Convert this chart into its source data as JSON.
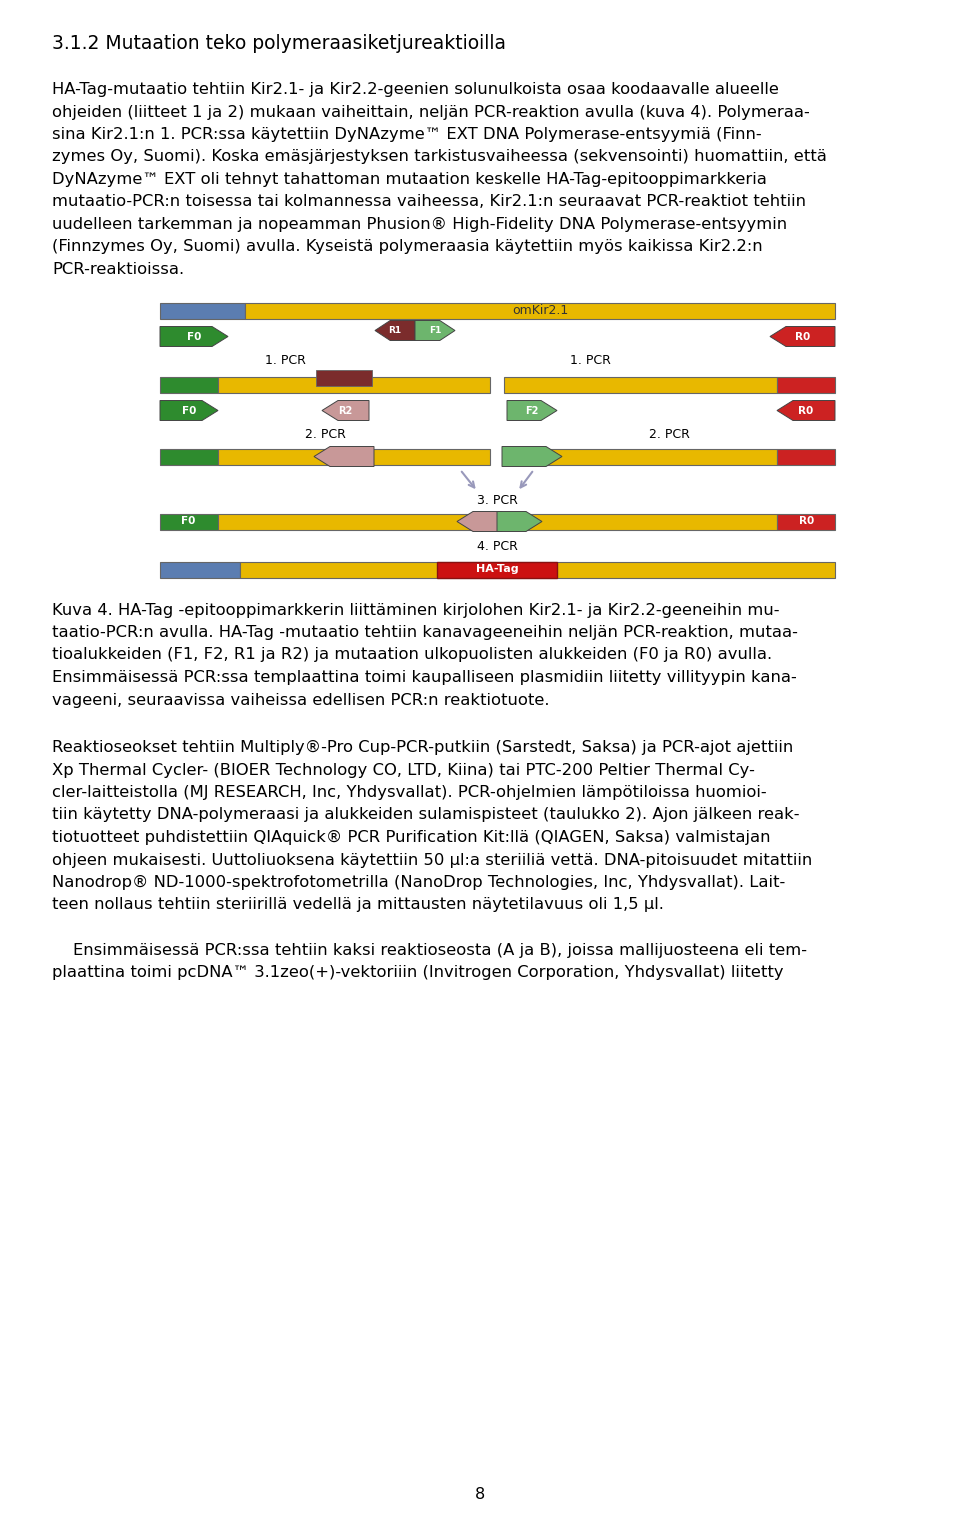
{
  "bg_color": "#ffffff",
  "heading": "3.1.2 Mutaation teko polymeraasiketjureaktioilla",
  "p1_lines": [
    "HA-Tag-mutaatio tehtiin Kir2.1- ja Kir2.2-geenien solunulkoista osaa koodaavalle alueelle",
    "ohjeiden (liitteet 1 ja 2) mukaan vaiheittain, neljän PCR-reaktion avulla (kuva 4). Polymeraa-",
    "sina Kir2.1:n 1. PCR:ssa käytettiin DyNAzyme™ EXT DNA Polymerase-entsyymiä (Finn-",
    "zymes Oy, Suomi). Koska emäsjärjestyksen tarkistusvaiheessa (sekvensointi) huomattiin, että",
    "DyNAzyme™ EXT oli tehnyt tahattoman mutaation keskelle HA-Tag-epitooppimarkkeria",
    "mutaatio-PCR:n toisessa tai kolmannessa vaiheessa, Kir2.1:n seuraavat PCR-reaktiot tehtiin",
    "uudelleen tarkemman ja nopeamman Phusion® High-Fidelity DNA Polymerase-entsyymin",
    "(Finnzymes Oy, Suomi) avulla. Kyseistä polymeraasia käytettiin myös kaikissa Kir2.2:n",
    "PCR-reaktioissa."
  ],
  "caption_lines": [
    "Kuva 4. HA-Tag -epitooppimarkkerin liittäminen kirjolohen Kir2.1- ja Kir2.2-geeneihin mu-",
    "taatio-PCR:n avulla. HA-Tag -mutaatio tehtiin kanavageeneihin neljän PCR-reaktion, mutaa-",
    "tioalukkeiden (F1, F2, R1 ja R2) ja mutaation ulkopuolisten alukkeiden (F0 ja R0) avulla.",
    "Ensimmäisessä PCR:ssa templaattina toimi kaupalliseen plasmidiin liitetty villityypin kana-",
    "vageeni, seuraavissa vaiheissa edellisen PCR:n reaktiotuote."
  ],
  "p2_lines": [
    "Reaktioseokset tehtiin Multiply®-Pro Cup-PCR-putkiin (Sarstedt, Saksa) ja PCR-ajot ajettiin",
    "Xp Thermal Cycler- (BIOER Technology CO, LTD, Kiina) tai PTC-200 Peltier Thermal Cy-",
    "cler-laitteistolla (MJ RESEARCH, Inc, Yhdysvallat). PCR-ohjelmien lämpötiloissa huomioi-",
    "tiin käytetty DNA-polymeraasi ja alukkeiden sulamispisteet (taulukko 2). Ajon jälkeen reak-",
    "tiotuotteet puhdistettiin QIAquick® PCR Purification Kit:llä (QIAGEN, Saksa) valmistajan",
    "ohjeen mukaisesti. Uuttoliuoksena käytettiin 50 µl:a steriiliä vettä. DNA-pitoisuudet mitattiin",
    "Nanodrop® ND-1000-spektrofotometrilla (NanoDrop Technologies, Inc, Yhdysvallat). Lait-",
    "teen nollaus tehtiin steriirillä vedellä ja mittausten näytetilavuus oli 1,5 µl."
  ],
  "p3_lines": [
    "    Ensimmäisessä PCR:ssa tehtiin kaksi reaktioseosta (A ja B), joissa mallijuosteena eli tem-",
    "plaattina toimi pcDNA™ 3.1zeo(+)-vektoriiin (Invitrogen Corporation, Yhdysvallat) liitetty"
  ],
  "page_number": "8"
}
